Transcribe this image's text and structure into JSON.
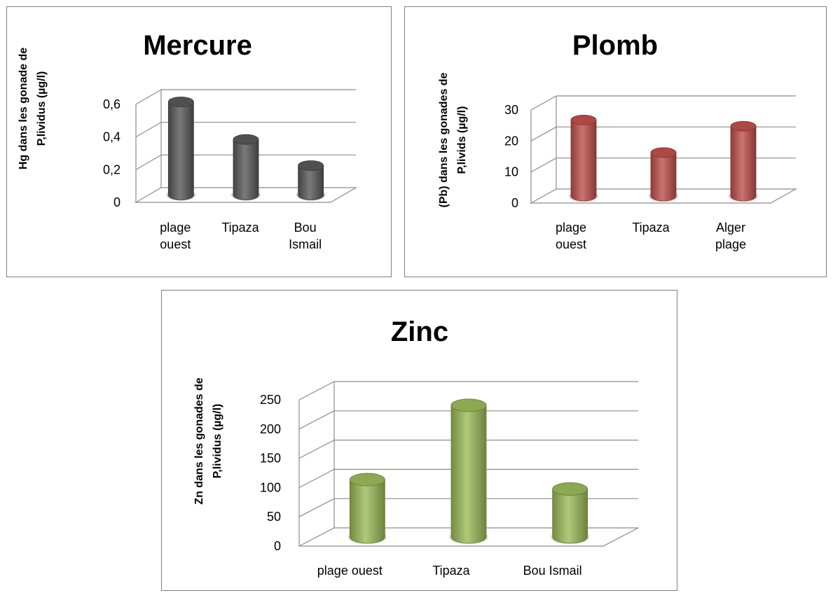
{
  "chart_data": [
    {
      "type": "bar",
      "title": "Mercure",
      "ylabel": [
        "Hg dans les gonade de",
        "P,lividus (µg/l)"
      ],
      "xlabel": "",
      "categories": [
        [
          "plage",
          "ouest"
        ],
        [
          "Tipaza"
        ],
        [
          "Bou",
          "Ismail"
        ]
      ],
      "values": [
        0.57,
        0.34,
        0.18
      ],
      "ylim": [
        0,
        0.6
      ],
      "yticks": [
        "0",
        "0,2",
        "0,4",
        "0,6"
      ],
      "grid": true,
      "color": "#595959"
    },
    {
      "type": "bar",
      "title": "Plomb",
      "ylabel": [
        "(Pb)  dans les gonades de",
        "P,livids (µg/l)"
      ],
      "xlabel": "",
      "categories": [
        [
          "plage",
          "ouest"
        ],
        [
          "Tipaza"
        ],
        [
          "Alger",
          "plage"
        ]
      ],
      "values": [
        24.5,
        14,
        22.5
      ],
      "ylim": [
        0,
        30
      ],
      "yticks": [
        "0",
        "10",
        "20",
        "30"
      ],
      "grid": true,
      "color": "#c0504d"
    },
    {
      "type": "bar",
      "title": "Zinc",
      "ylabel": [
        "Zn dans les gonades de",
        "P,lividus (µg/l)"
      ],
      "xlabel": "",
      "categories": [
        [
          "plage ouest"
        ],
        [
          "Tipaza"
        ],
        [
          "Bou Ismail"
        ]
      ],
      "values": [
        98,
        225,
        82
      ],
      "ylim": [
        0,
        250
      ],
      "yticks": [
        "0",
        "50",
        "100",
        "150",
        "200",
        "250"
      ],
      "grid": true,
      "color": "#9bbb59"
    }
  ]
}
